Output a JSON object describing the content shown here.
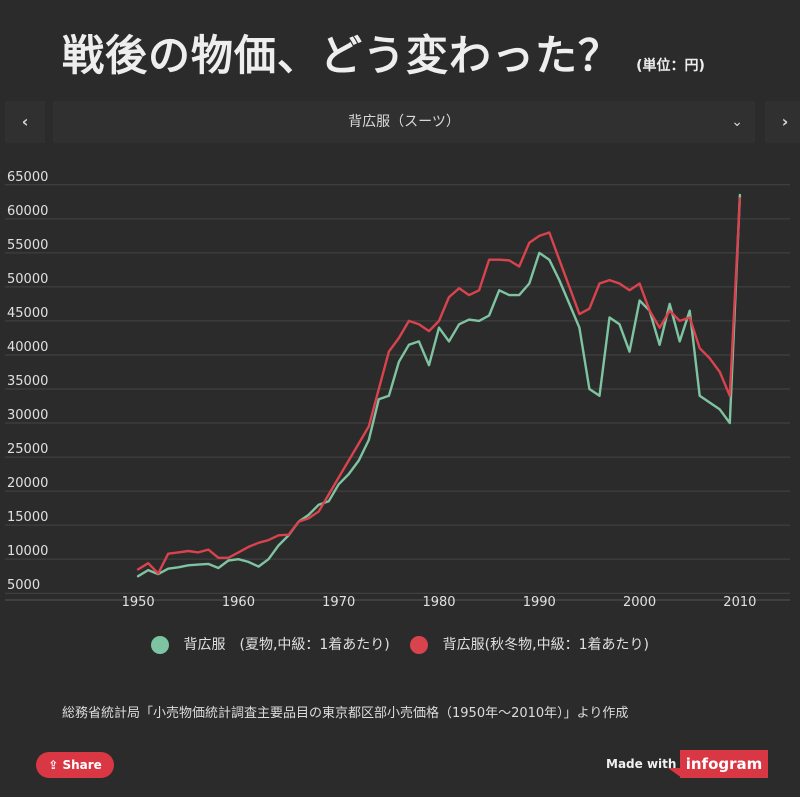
{
  "header": {
    "title": "戦後の物価、どう変わった？",
    "unit": "(単位：円)"
  },
  "selector": {
    "prev_icon": "‹",
    "next_icon": "›",
    "selected": "背広服（スーツ）",
    "chevron": "⌄"
  },
  "colors": {
    "summer": "#7ec4a2",
    "winter": "#d9434d",
    "accent": "#d93743"
  },
  "chart_data": {
    "type": "line",
    "x": [
      1950,
      1951,
      1952,
      1953,
      1954,
      1955,
      1956,
      1957,
      1958,
      1959,
      1960,
      1961,
      1962,
      1963,
      1964,
      1965,
      1966,
      1967,
      1968,
      1969,
      1970,
      1971,
      1972,
      1973,
      1974,
      1975,
      1976,
      1977,
      1978,
      1979,
      1980,
      1981,
      1982,
      1983,
      1984,
      1985,
      1986,
      1987,
      1988,
      1989,
      1990,
      1991,
      1992,
      1993,
      1994,
      1995,
      1996,
      1997,
      1998,
      1999,
      2000,
      2001,
      2002,
      2003,
      2004,
      2005,
      2006,
      2007,
      2008,
      2009,
      2010
    ],
    "series": [
      {
        "name": "背広服　(夏物,中級：1着あたり)",
        "color": "#7ec4a2",
        "values": [
          7500,
          8400,
          7800,
          8600,
          8800,
          9100,
          9200,
          9300,
          8700,
          9800,
          10000,
          9600,
          8900,
          10000,
          12000,
          13500,
          15500,
          16500,
          18000,
          18500,
          21000,
          22500,
          24500,
          27500,
          33500,
          34000,
          39000,
          41500,
          42000,
          38500,
          44000,
          42000,
          44500,
          45200,
          45000,
          45800,
          49500,
          48800,
          48800,
          50500,
          55000,
          54000,
          51000,
          47500,
          44000,
          35000,
          34000,
          45500,
          44500,
          40500,
          48000,
          46500,
          41500,
          47500,
          42000,
          46500,
          34000,
          33000,
          32000,
          30000,
          63500
        ]
      },
      {
        "name": "背広服(秋冬物,中級：1着あたり)",
        "color": "#d9434d",
        "values": [
          8500,
          9400,
          7900,
          10800,
          11000,
          11200,
          11000,
          11400,
          10200,
          10200,
          11000,
          11800,
          12400,
          12800,
          13500,
          13600,
          15500,
          16000,
          17000,
          19500,
          22000,
          24500,
          27000,
          29500,
          35000,
          40500,
          42500,
          45000,
          44500,
          43500,
          45000,
          48500,
          49800,
          48800,
          49500,
          54000,
          54000,
          53900,
          53000,
          56500,
          57500,
          58000,
          54000,
          50000,
          46000,
          46800,
          50500,
          51000,
          50500,
          49500,
          50500,
          46500,
          44000,
          46500,
          45000,
          45500,
          41000,
          39500,
          37500,
          34000,
          63000
        ]
      }
    ],
    "xticks": [
      1950,
      1960,
      1970,
      1980,
      1990,
      2000,
      2010
    ],
    "yticks": [
      5000,
      10000,
      15000,
      20000,
      25000,
      30000,
      35000,
      40000,
      45000,
      50000,
      55000,
      60000,
      65000
    ],
    "xlim": [
      1945,
      2015
    ],
    "ylim": [
      4000,
      66000
    ],
    "grid": true,
    "legend": "bottom"
  },
  "footer": {
    "source": "総務省統計局「小売物価統計調査主要品目の東京都区部小売価格（1950年～2010年）」より作成",
    "share_label": "Share",
    "made_with": "Made with",
    "brand": "infogram"
  }
}
